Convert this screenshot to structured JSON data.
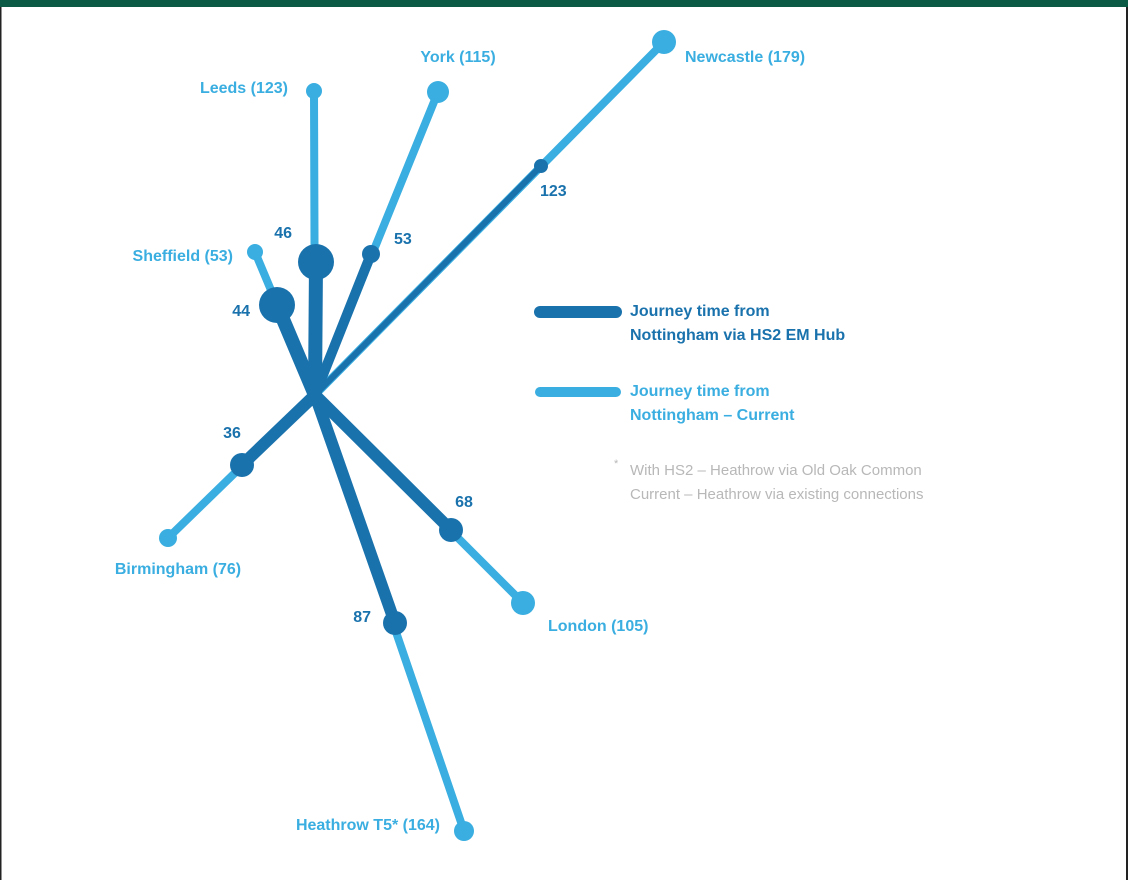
{
  "routes": [
    {
      "destination": "Leeds (123)",
      "hs2": "46"
    },
    {
      "destination": "York (115)",
      "hs2": "53"
    },
    {
      "destination": "Newcastle (179)",
      "hs2": "123"
    },
    {
      "destination": "Sheffield (53)",
      "hs2": "44"
    },
    {
      "destination": "Birmingham (76)",
      "hs2": "36"
    },
    {
      "destination": "London (105)",
      "hs2": "68"
    },
    {
      "destination": "Heathrow T5* (164)",
      "hs2": "87"
    }
  ],
  "legend": [
    {
      "lines": [
        "Journey time from",
        "Nottingham via HS2 EM Hub"
      ]
    },
    {
      "lines": [
        "Journey time from",
        "Nottingham – Current"
      ]
    }
  ],
  "footnote": {
    "marker": "*",
    "lines": [
      "With HS2 – Heathrow via Old Oak Common",
      "Current – Heathrow via existing connections"
    ]
  }
}
